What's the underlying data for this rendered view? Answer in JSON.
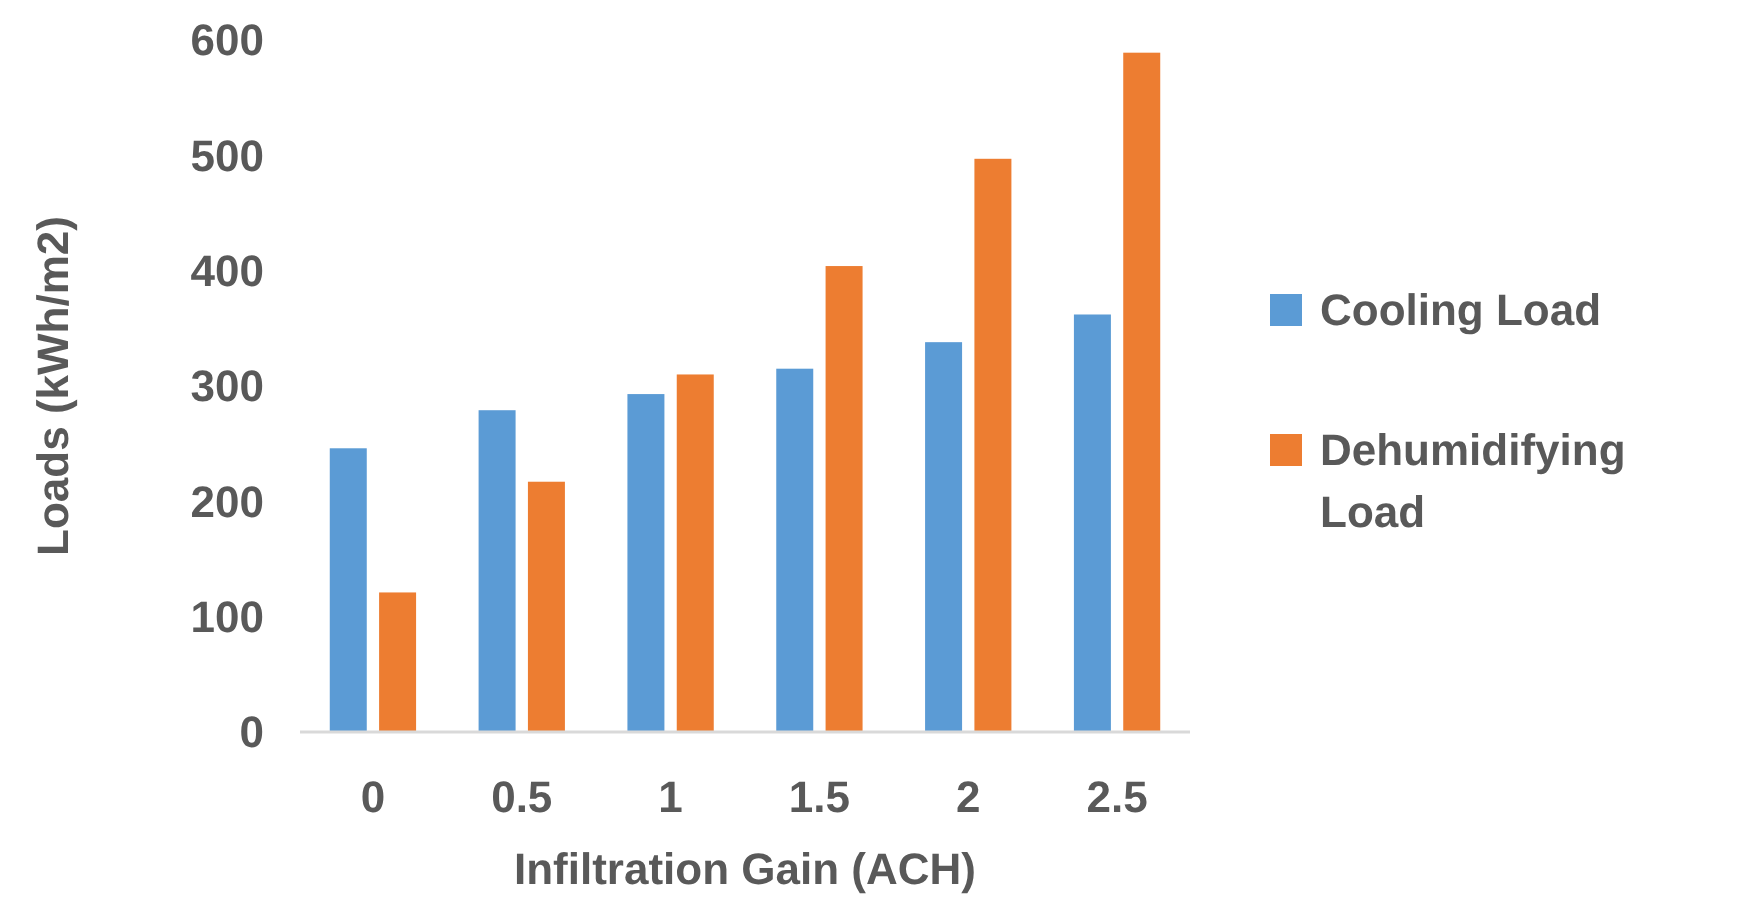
{
  "chart_data": {
    "type": "bar",
    "xlabel": "Infiltration Gain (ACH)",
    "ylabel": "Loads (kWh/m2)",
    "categories": [
      "0",
      "0.5",
      "1",
      "1.5",
      "2",
      "2.5"
    ],
    "series": [
      {
        "name": "Cooling Load",
        "color": "#5b9bd5",
        "values": [
          246,
          279,
          293,
          315,
          338,
          362
        ]
      },
      {
        "name": "Dehumidifying Load",
        "color": "#ed7d31",
        "values": [
          121,
          217,
          310,
          404,
          497,
          589
        ]
      }
    ],
    "ylim": [
      0,
      600
    ],
    "yticks": [
      0,
      100,
      200,
      300,
      400,
      500,
      600
    ],
    "grid": false,
    "legend": "right"
  }
}
